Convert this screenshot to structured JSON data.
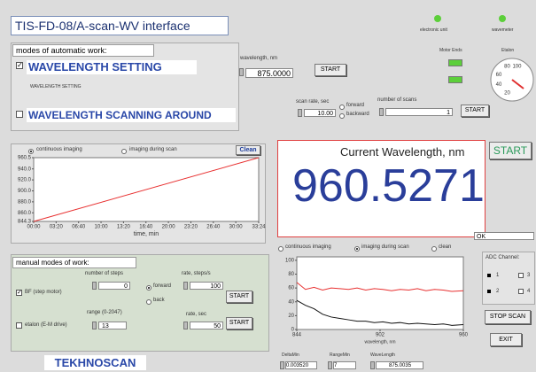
{
  "header": {
    "title": "TIS-FD-08/A-scan-WV interface"
  },
  "indicators": {
    "electronic_unit": "electronic unit",
    "wavemeter": "wavemeter",
    "motor_ends": "Motor Ends",
    "etalon": "Etalon",
    "etalon_scale": [
      20,
      40,
      60,
      80,
      100
    ]
  },
  "auto": {
    "title": "modes of automatic work:",
    "setting": "WAVELENGTH SETTING",
    "setting_small": "WAVELENGTH SETTING",
    "scanning": "WAVELENGTH SCANNING AROUND",
    "wavelength_label": "wavelength, nm",
    "wavelength": "875.0000",
    "start": "START",
    "scan_rate_label": "scan rate, sec",
    "scan_rate": "10.00",
    "forward": "forward",
    "backward": "backward",
    "scans_label": "number of scans",
    "scans": 1,
    "start2": "START"
  },
  "time_chart": {
    "type": "line",
    "continuous": "continuous imaging",
    "during": "imaging during scan",
    "clean": "Clean",
    "x_label": "time, min",
    "x": [
      0,
      2004
    ],
    "values": [
      844.3,
      960.5
    ],
    "color": "#e83030",
    "xlim": [
      0,
      2004
    ],
    "xticks": [
      {
        "value": 0,
        "label": "00:00"
      },
      {
        "value": 200,
        "label": "03:20"
      },
      {
        "value": 400,
        "label": "06:40"
      },
      {
        "value": 600,
        "label": "10:00"
      },
      {
        "value": 800,
        "label": "13:20"
      },
      {
        "value": 1000,
        "label": "16:40"
      },
      {
        "value": 1200,
        "label": "20:00"
      },
      {
        "value": 1400,
        "label": "23:20"
      },
      {
        "value": 1600,
        "label": "26:40"
      },
      {
        "value": 1800,
        "label": "30:00"
      },
      {
        "value": 2004,
        "label": "33:24"
      }
    ],
    "ylim": [
      844.3,
      960.5
    ],
    "yticks": [
      844.3,
      {
        "value": 860,
        "label": "860.0"
      },
      {
        "value": 880,
        "label": "880.0"
      },
      {
        "value": 900,
        "label": "900.0"
      },
      {
        "value": 920,
        "label": "920.0"
      },
      {
        "value": 940,
        "label": "940.0"
      },
      960.5
    ]
  },
  "current": {
    "title": "Current Wavelength, nm",
    "value": 960.5271,
    "start": "START"
  },
  "spectrum": {
    "type": "line",
    "continuous": "continuous imaging",
    "during": "imaging during scan",
    "clean": "clean",
    "x_label": "wavelength, nm",
    "x": [
      844,
      850,
      856,
      862,
      868,
      874,
      880,
      886,
      892,
      898,
      904,
      910,
      916,
      922,
      928,
      934,
      940,
      946,
      952,
      960
    ],
    "series": [
      {
        "color": "#e83030",
        "values": [
          68,
          58,
          61,
          57,
          60,
          59,
          58,
          60,
          57,
          59,
          58,
          56,
          58,
          57,
          59,
          56,
          58,
          57,
          55,
          56
        ]
      },
      {
        "color": "#111111",
        "values": [
          42,
          35,
          30,
          22,
          18,
          16,
          14,
          12,
          12,
          10,
          11,
          9,
          10,
          8,
          9,
          8,
          7,
          8,
          6,
          7
        ]
      }
    ],
    "xlim": [
      844,
      960
    ],
    "xticks": [
      844,
      902,
      960
    ],
    "ylim": [
      0,
      105
    ],
    "yticks": [
      0,
      20,
      40,
      60,
      80,
      100
    ]
  },
  "adc": {
    "status": "OK",
    "title": "ADC Channel:",
    "channels": [
      1,
      2,
      3,
      4
    ],
    "stop": "STOP SCAN",
    "exit": "EXIT"
  },
  "manual": {
    "title": "manual modes of work:",
    "bf": "BF (step motor)",
    "steps_label": "number of steps",
    "steps": 0,
    "forward": "forward",
    "back": "back",
    "rate_label": "rate, steps/s",
    "rate": 100,
    "start": "START",
    "etalon": "etalon (E-M drive)",
    "range_label": "range (0-2047)",
    "range": 13,
    "rate2_label": "rate, sec",
    "rate2": 50,
    "start2": "START"
  },
  "footer": {
    "brand": "TEKHNOSCAN",
    "delta_label": "DeltaMin",
    "delta": "0.003520",
    "range_label": "RangeMin",
    "range": 7,
    "wave_label": "WaveLength",
    "wave": "875.0035"
  }
}
